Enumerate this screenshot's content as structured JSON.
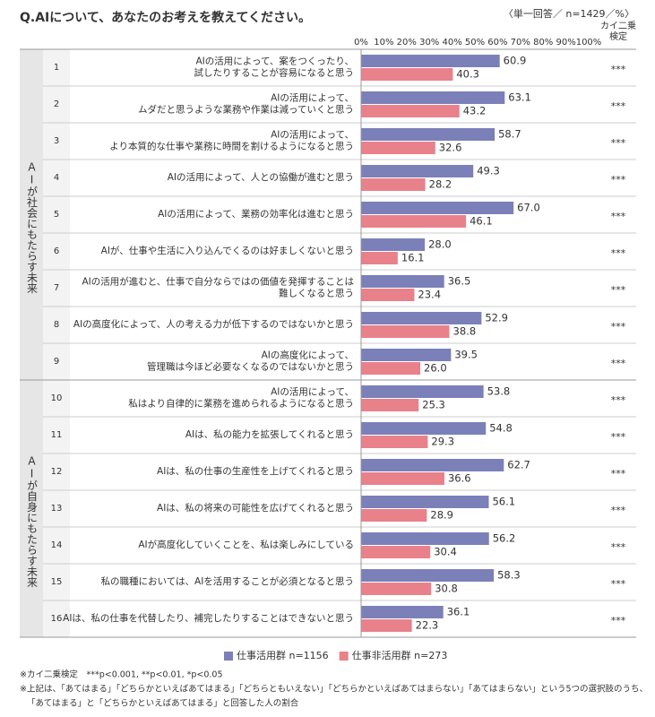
{
  "chart_data": {
    "type": "grouped-hbar",
    "title": "Q.AIについて、あなたのお考えを教えてください。",
    "subtitle": "〈単一回答／ n=1429／%〉",
    "test_header": "カイ二乗\n検定",
    "xlim": [
      0,
      100
    ],
    "xticks": [
      {
        "value": 0,
        "label": "0%"
      },
      {
        "value": 10,
        "label": "10%"
      },
      {
        "value": 20,
        "label": "20%"
      },
      {
        "value": 30,
        "label": "30%"
      },
      {
        "value": 40,
        "label": "40%"
      },
      {
        "value": 50,
        "label": "50%"
      },
      {
        "value": 60,
        "label": "60%"
      },
      {
        "value": 70,
        "label": "70%"
      },
      {
        "value": 80,
        "label": "80%"
      },
      {
        "value": 90,
        "label": "90%"
      },
      {
        "value": 100,
        "label": "100%"
      }
    ],
    "grid": false,
    "legend": "bottom",
    "groups": [
      {
        "label": "AIが社会にもたらす未来",
        "row_labels": [
          "1",
          "2",
          "3",
          "4",
          "5",
          "6",
          "7",
          "8",
          "9"
        ],
        "categories": [
          "AIの活用によって、案をつくったり、\n試したりすることが容易になると思う",
          "AIの活用によって、\nムダだと思うような業務や作業は減っていくと思う",
          "AIの活用によって、\nより本質的な仕事や業務に時間を割けるようになると思う",
          "AIの活用によって、人との協働が進むと思う",
          "AIの活用によって、業務の効率化は進むと思う",
          "AIが、仕事や生活に入り込んでくるのは好ましくないと思う",
          "AIの活用が進むと、仕事で自分ならではの価値を発揮することは\n難しくなると思う",
          "AIの高度化によって、人の考える力が低下するのではないかと思う",
          "AIの高度化によって、\n管理職は今ほど必要なくなるのではないかと思う"
        ],
        "significance": [
          "***",
          "***",
          "***",
          "***",
          "***",
          "***",
          "***",
          "***",
          "***"
        ]
      },
      {
        "label": "AIが自身にもたらす未来",
        "row_labels": [
          "10",
          "11",
          "12",
          "13",
          "14",
          "15",
          "16"
        ],
        "categories": [
          "AIの活用によって、\n私はより自律的に業務を進められるようになると思う",
          "AIは、私の能力を拡張してくれると思う",
          "AIは、私の仕事の生産性を上げてくれると思う",
          "AIは、私の将来の可能性を広げてくれると思う",
          "AIが高度化していくことを、私は楽しみにしている",
          "私の職種においては、AIを活用することが必須となると思う",
          "AIは、私の仕事を代替したり、補完したりすることはできないと思う"
        ],
        "significance": [
          "***",
          "***",
          "***",
          "***",
          "***",
          "***",
          "***"
        ]
      }
    ],
    "series": [
      {
        "name": "仕事活用群 n=1156",
        "color": "#7b80b9",
        "values": [
          [
            60.9,
            63.1,
            58.7,
            49.3,
            67.0,
            28.0,
            36.5,
            52.9,
            39.5
          ],
          [
            53.8,
            54.8,
            62.7,
            56.1,
            56.2,
            58.3,
            36.1
          ]
        ],
        "value_labels": [
          [
            "60.9",
            "63.1",
            "58.7",
            "49.3",
            "67.0",
            "28.0",
            "36.5",
            "52.9",
            "39.5"
          ],
          [
            "53.8",
            "54.8",
            "62.7",
            "56.1",
            "56.2",
            "58.3",
            "36.1"
          ]
        ]
      },
      {
        "name": "仕事非活用群 n=273",
        "color": "#e9818b",
        "values": [
          [
            40.3,
            43.2,
            32.6,
            28.2,
            46.1,
            16.1,
            23.4,
            38.8,
            26.0
          ],
          [
            25.3,
            29.3,
            36.6,
            28.9,
            30.4,
            30.8,
            22.3
          ]
        ],
        "value_labels": [
          [
            "40.3",
            "43.2",
            "32.6",
            "28.2",
            "46.1",
            "16.1",
            "23.4",
            "38.8",
            "26.0"
          ],
          [
            "25.3",
            "29.3",
            "36.6",
            "28.9",
            "30.4",
            "30.8",
            "22.3"
          ]
        ]
      }
    ],
    "footnotes": [
      "※カイ二乗検定　***p<0.001, **p<0.01, *p<0.05",
      "※上記は、「あてはまる」「どちらかといえばあてはまる」「どちらともいえない」「どちらかといえばあてはまらない」「あてはまらない」という5つの選択肢のうち、",
      "「あてはまる」と「どちらかといえばあてはまる」と回答した人の割合"
    ]
  }
}
